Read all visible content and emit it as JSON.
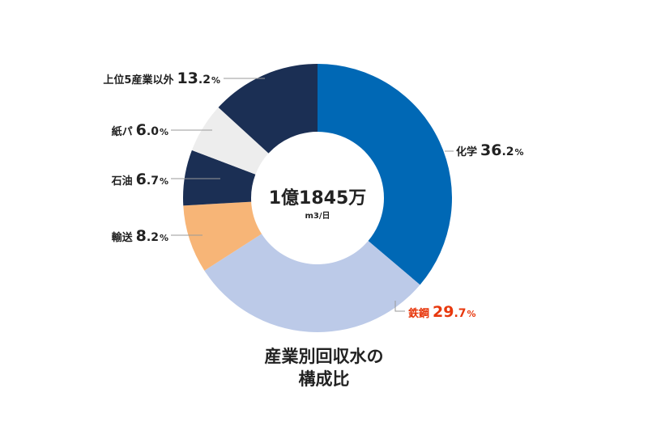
{
  "chart_data": {
    "type": "pie",
    "donut": true,
    "center": {
      "value": "1億1845万",
      "unit": "m3/日"
    },
    "caption": [
      "産業別回収水の",
      "構成比"
    ],
    "legend": "none",
    "slices": [
      {
        "label": "化学",
        "value": 36.2,
        "value_text": "36.2",
        "color": "#0068b5"
      },
      {
        "label": "鉄鋼",
        "value": 29.7,
        "value_text": "29.7",
        "color": "#bccae8",
        "label_color": "#e8380d"
      },
      {
        "label": "輸送",
        "value": 8.2,
        "value_text": "8.2",
        "color": "#f7b577"
      },
      {
        "label": "石油",
        "value": 6.7,
        "value_text": "6.7",
        "color": "#1b2f54"
      },
      {
        "label": "紙パ",
        "value": 6.0,
        "value_text": "6.0",
        "color": "#ededed"
      },
      {
        "label": "上位5産業以外",
        "value": 13.2,
        "value_text": "13.2",
        "color": "#1b2f54"
      }
    ],
    "percent_symbol": "%"
  }
}
